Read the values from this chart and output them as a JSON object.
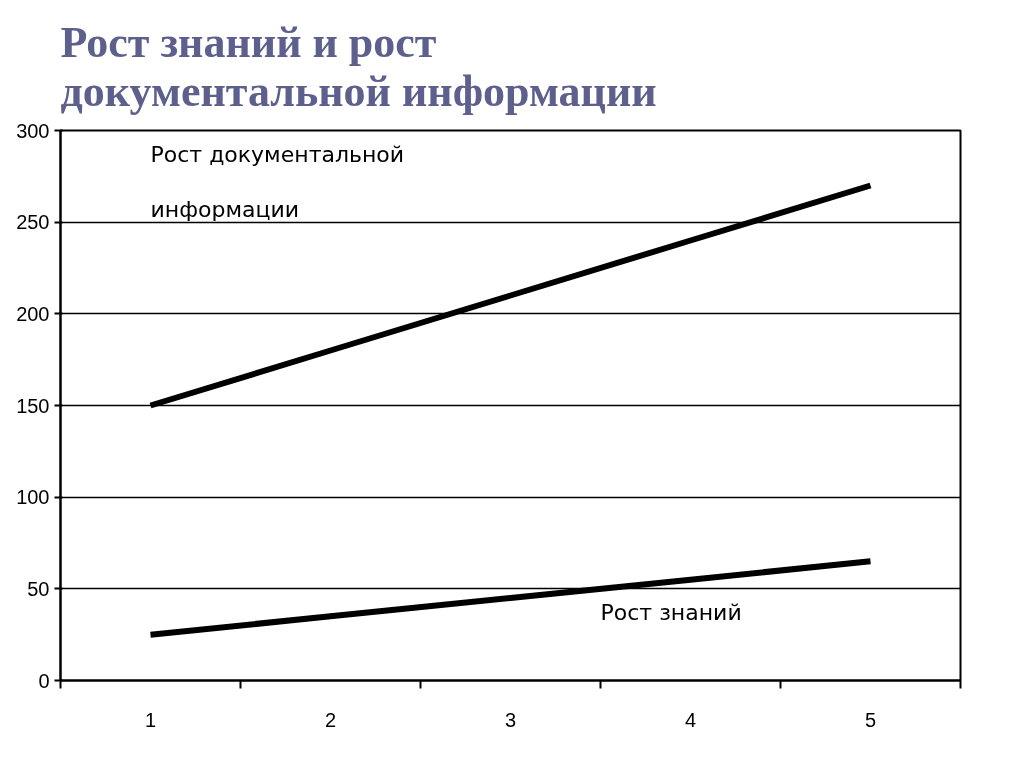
{
  "chart_data": {
    "type": "line",
    "title": "Рост знаний и рост документальной информации",
    "categories": [
      "1",
      "2",
      "3",
      "4",
      "5"
    ],
    "series": [
      {
        "name": "Рост документальной информации",
        "color": "#000000",
        "values": [
          150,
          180,
          210,
          240,
          270
        ]
      },
      {
        "name": "Рост знаний",
        "color": "#000000",
        "values": [
          25,
          35,
          45,
          55,
          65
        ]
      }
    ],
    "ylim": [
      0,
      300
    ],
    "yticks": [
      0,
      50,
      100,
      150,
      200,
      250,
      300
    ],
    "grid": "y",
    "legend": false,
    "marker": "none",
    "line_style": "solid"
  }
}
